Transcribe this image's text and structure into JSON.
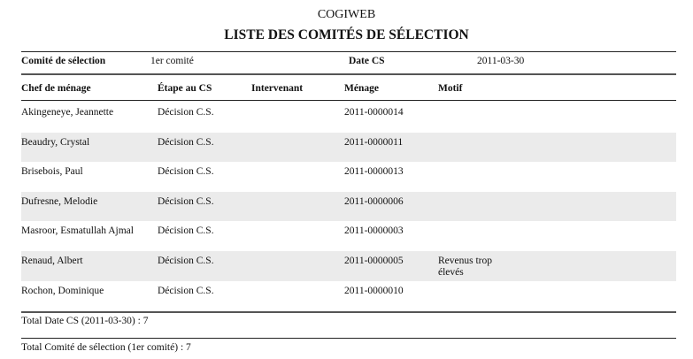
{
  "organization": "COGIWEB",
  "title": "LISTE DES COMITÉS DE SÉLECTION",
  "group": {
    "committee_label": "Comité de sélection",
    "committee_value": "1er comité",
    "date_label": "Date CS",
    "date_value": "2011-03-30"
  },
  "columns": [
    "Chef de ménage",
    "Étape au CS",
    "Intervenant",
    "Ménage",
    "Motif"
  ],
  "rows": [
    {
      "chef": "Akingeneye, Jeannette",
      "etape": "Décision C.S.",
      "intervenant": "",
      "menage": "2011-0000014",
      "motif": ""
    },
    {
      "chef": "Beaudry, Crystal",
      "etape": "Décision C.S.",
      "intervenant": "",
      "menage": "2011-0000011",
      "motif": ""
    },
    {
      "chef": "Brisebois, Paul",
      "etape": "Décision C.S.",
      "intervenant": "",
      "menage": "2011-0000013",
      "motif": ""
    },
    {
      "chef": "Dufresne, Melodie",
      "etape": "Décision C.S.",
      "intervenant": "",
      "menage": "2011-0000006",
      "motif": ""
    },
    {
      "chef": "Masroor, Esmatullah Ajmal",
      "etape": "Décision C.S.",
      "intervenant": "",
      "menage": "2011-0000003",
      "motif": ""
    },
    {
      "chef": "Renaud, Albert",
      "etape": "Décision C.S.",
      "intervenant": "",
      "menage": "2011-0000005",
      "motif": "Revenus trop élevés"
    },
    {
      "chef": "Rochon, Dominique",
      "etape": "Décision C.S.",
      "intervenant": "",
      "menage": "2011-0000010",
      "motif": ""
    }
  ],
  "totals": {
    "date": "Total Date CS (2011-03-30) : 7",
    "committee": "Total Comité de sélection (1er comité) : 7"
  }
}
